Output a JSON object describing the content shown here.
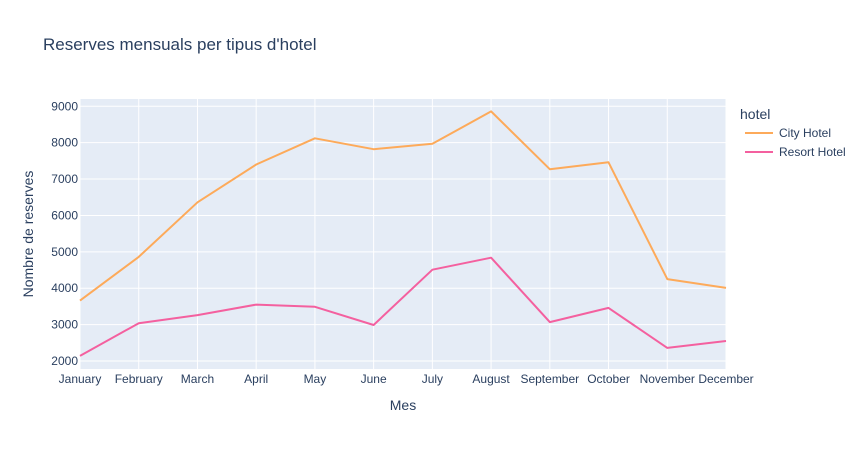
{
  "chart_data": {
    "type": "line",
    "title": "Reserves mensuals per tipus d'hotel",
    "xlabel": "Mes",
    "ylabel": "Nombre de reserves",
    "categories": [
      "January",
      "February",
      "March",
      "April",
      "May",
      "June",
      "July",
      "August",
      "September",
      "October",
      "November",
      "December"
    ],
    "ylim": [
      1780,
      9200
    ],
    "yticks": [
      2000,
      3000,
      4000,
      5000,
      6000,
      7000,
      8000,
      9000
    ],
    "ytick_labels": [
      "2000",
      "3000",
      "4000",
      "5000",
      "6000",
      "7000",
      "8000",
      "9000"
    ],
    "grid": true,
    "legend": {
      "title": "hotel",
      "position": "right"
    },
    "series": [
      {
        "name": "City Hotel",
        "color": "#fdaa5a",
        "values": [
          3660,
          4860,
          6360,
          7400,
          8120,
          7820,
          7970,
          8860,
          7270,
          7460,
          4250,
          4010
        ]
      },
      {
        "name": "Resort Hotel",
        "color": "#f4609f",
        "values": [
          2140,
          3040,
          3260,
          3550,
          3490,
          2990,
          4510,
          4840,
          3070,
          3460,
          2360,
          2550
        ]
      }
    ]
  }
}
